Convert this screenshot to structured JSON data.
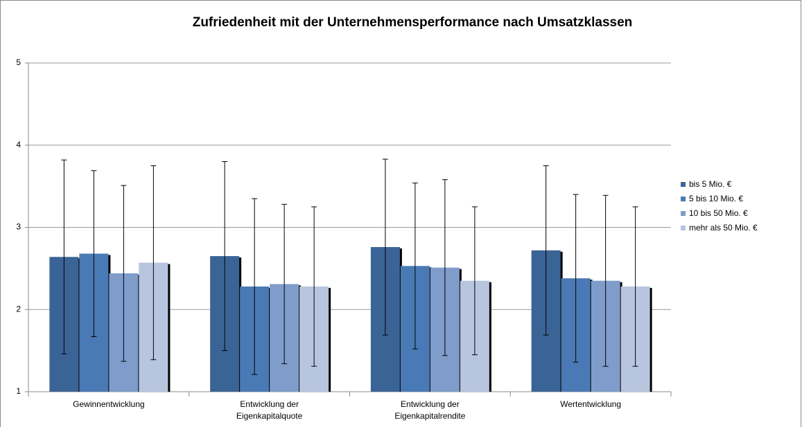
{
  "chart_data": {
    "type": "bar",
    "title": "Zufriedenheit mit der Unternehmensperformance nach Umsatzklassen",
    "categories": [
      "Gewinnentwicklung",
      "Entwicklung der Eigenkapitalquote",
      "Entwicklung der Eigenkapitalrendite",
      "Wertentwicklung"
    ],
    "series": [
      {
        "name": "bis 5 Mio. €",
        "color": "#3b6496",
        "values": [
          2.64,
          2.65,
          2.76,
          2.72
        ],
        "errors": [
          1.18,
          1.15,
          1.07,
          1.03
        ]
      },
      {
        "name": "5 bis 10 Mio. €",
        "color": "#4a7ab5",
        "values": [
          2.68,
          2.28,
          2.53,
          2.38
        ],
        "errors": [
          1.01,
          1.07,
          1.01,
          1.02
        ]
      },
      {
        "name": "10 bis 50 Mio. €",
        "color": "#7f9ccb",
        "values": [
          2.44,
          2.31,
          2.51,
          2.35
        ],
        "errors": [
          1.07,
          0.97,
          1.07,
          1.04
        ]
      },
      {
        "name": "mehr als 50 Mio. €",
        "color": "#b7c5de",
        "values": [
          2.57,
          2.28,
          2.35,
          2.28
        ],
        "errors": [
          1.18,
          0.97,
          0.9,
          0.97
        ]
      }
    ],
    "ylim": [
      1,
      5
    ],
    "yticks": [
      1,
      2,
      3,
      4,
      5
    ],
    "grid": true,
    "legend": "right"
  }
}
